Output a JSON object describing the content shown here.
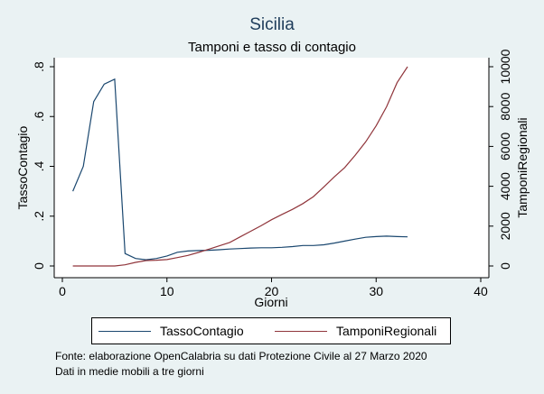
{
  "chart_data": {
    "type": "line",
    "title": "Sicilia",
    "subtitle": "Tamponi e tasso di contagio",
    "xlabel": "Giorni",
    "ylabel_left": "TassoContagio",
    "ylabel_right": "TamponiRegionali",
    "xlim": [
      0,
      40
    ],
    "ylim_left": [
      0,
      0.8
    ],
    "ylim_right": [
      0,
      10000
    ],
    "x_ticks": [
      "0",
      "10",
      "20",
      "30",
      "40"
    ],
    "y_left_ticks": [
      "0",
      ".2",
      ".4",
      ".6",
      ".8"
    ],
    "y_right_ticks": [
      "0",
      "2000",
      "4000",
      "6000",
      "8000",
      "10000"
    ],
    "grid": false,
    "legend_position": "bottom",
    "series": [
      {
        "name": "TassoContagio",
        "axis": "left",
        "color": "#1a476f",
        "x": [
          1,
          2,
          3,
          4,
          5,
          6,
          7,
          8,
          9,
          10,
          11,
          12,
          13,
          14,
          15,
          16,
          17,
          18,
          19,
          20,
          21,
          22,
          23,
          24,
          25,
          26,
          27,
          28,
          29,
          30,
          31,
          32,
          33
        ],
        "y": [
          0.3,
          0.4,
          0.66,
          0.73,
          0.75,
          0.05,
          0.03,
          0.025,
          0.03,
          0.04,
          0.055,
          0.06,
          0.062,
          0.063,
          0.065,
          0.068,
          0.07,
          0.072,
          0.073,
          0.073,
          0.075,
          0.078,
          0.082,
          0.082,
          0.085,
          0.092,
          0.1,
          0.108,
          0.115,
          0.118,
          0.12,
          0.118,
          0.117
        ]
      },
      {
        "name": "TamponiRegionali",
        "axis": "right",
        "color": "#90353b",
        "x": [
          1,
          2,
          3,
          4,
          5,
          6,
          7,
          8,
          9,
          10,
          11,
          12,
          13,
          14,
          15,
          16,
          17,
          18,
          19,
          20,
          21,
          22,
          23,
          24,
          25,
          26,
          27,
          28,
          29,
          30,
          31,
          32,
          33
        ],
        "y": [
          0,
          0,
          0,
          0,
          0,
          60,
          180,
          270,
          290,
          320,
          420,
          530,
          680,
          840,
          1010,
          1180,
          1460,
          1740,
          2020,
          2320,
          2590,
          2840,
          3130,
          3480,
          3970,
          4470,
          4940,
          5560,
          6230,
          7040,
          7990,
          9200,
          10000
        ]
      }
    ]
  },
  "legend": {
    "item1": "TassoContagio",
    "item2": "TamponiRegionali"
  },
  "footnotes": {
    "source": "Fonte: elaborazione OpenCalabria su dati Protezione Civile al 27 Marzo 2020",
    "note": "Dati in medie mobili a tre giorni"
  }
}
